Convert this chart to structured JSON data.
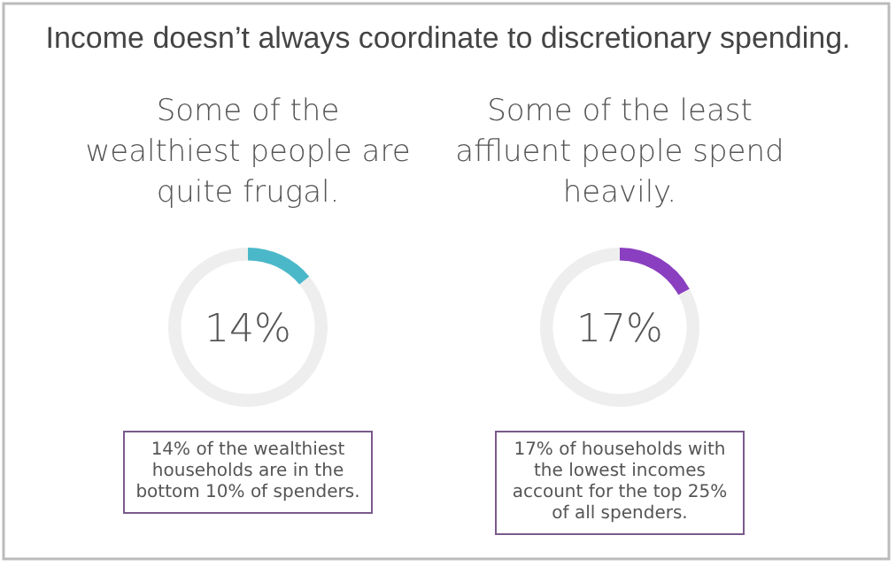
{
  "chart_data": [
    {
      "type": "donut",
      "title": "Income doesn’t always coordinate to discretionary spending.",
      "subtitle": "Some of the wealthiest people are quite frugal.",
      "categories": [
        null,
        null
      ],
      "values": [
        14,
        86
      ],
      "colors": [
        "#4bb8c9",
        "#eeeeee"
      ],
      "annotations": [
        "14%",
        "14% of the wealthiest households are in the bottom 10% of spenders."
      ]
    },
    {
      "type": "donut",
      "subtitle": "Some of the least affluent people spend heavily.",
      "categories": [
        null,
        null
      ],
      "values": [
        17,
        83
      ],
      "colors": [
        "#8a3fc0",
        "#eeeeee"
      ],
      "annotations": [
        "17%",
        "17% of households with the lowest incomes account for the top 25% of all spenders."
      ]
    }
  ]
}
